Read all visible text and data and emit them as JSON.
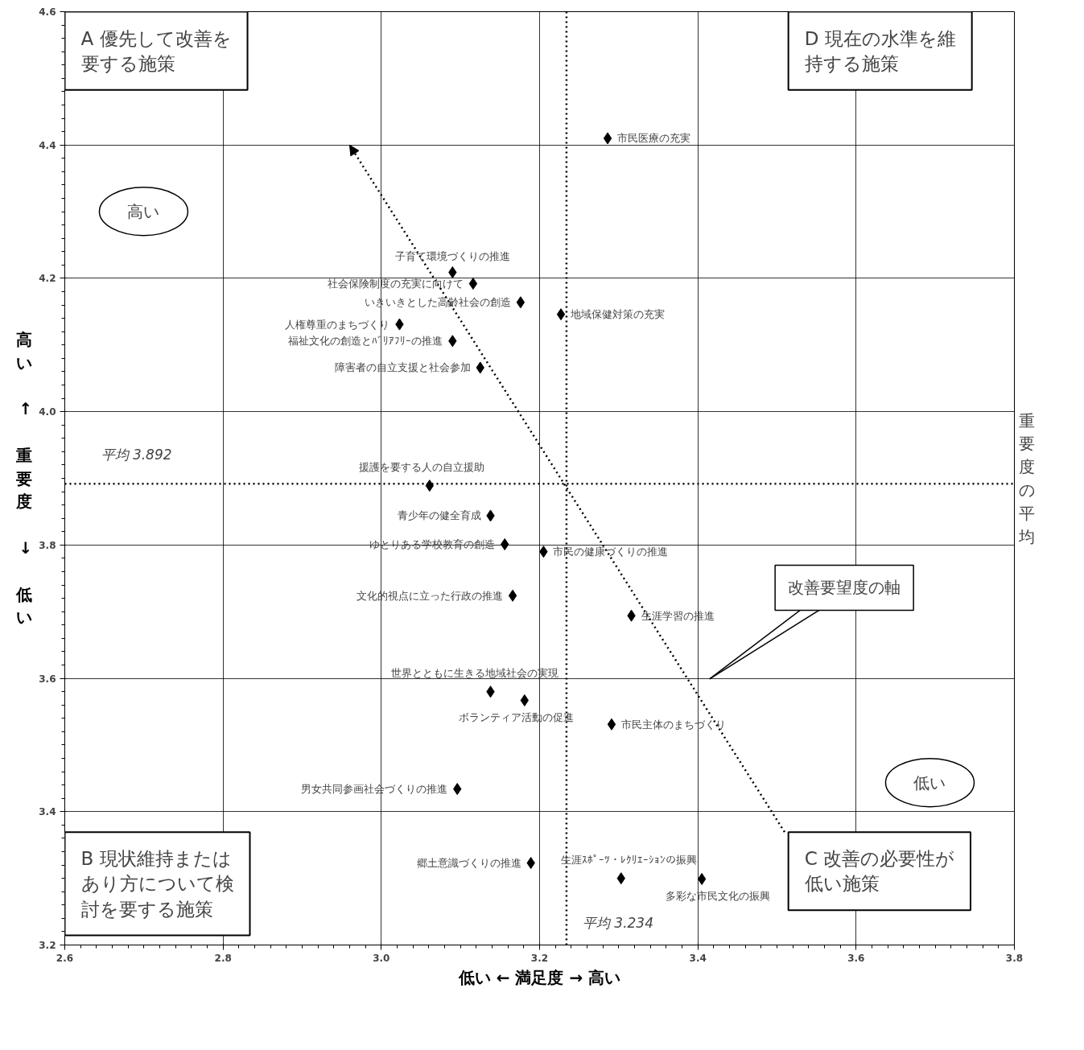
{
  "chart_data": {
    "type": "scatter",
    "xlabel": "低い ← 満足度 → 高い",
    "ylabel": "高い ↑ 重要度 ↓ 低い",
    "y2label": "重要度の平均",
    "x": [
      3.286,
      3.09,
      3.116,
      3.176,
      3.227,
      3.023,
      3.09,
      3.125,
      3.061,
      3.138,
      3.156,
      3.205,
      3.166,
      3.316,
      3.138,
      3.181,
      3.291,
      3.096,
      3.189,
      3.303,
      3.405
    ],
    "series": [
      {
        "color": "#000000",
        "values": [
          4.41,
          4.209,
          4.192,
          4.164,
          4.146,
          4.131,
          4.106,
          4.066,
          3.889,
          3.844,
          3.801,
          3.79,
          3.724,
          3.694,
          3.58,
          3.567,
          3.531,
          3.434,
          3.323,
          3.3,
          3.299
        ]
      }
    ],
    "xlim": [
      2.6,
      3.8
    ],
    "xticks": [
      2.6,
      2.8,
      {
        "value": 3,
        "label": "3.0"
      },
      3.2,
      3.4,
      3.6,
      3.8
    ],
    "ylim": [
      3.2,
      4.6
    ],
    "yticks": [
      3.2,
      3.4,
      3.6,
      3.8,
      {
        "value": 4,
        "label": "4.0"
      },
      4.2,
      4.4,
      4.6
    ],
    "grid": true,
    "marker": "diamond",
    "ref_lines": [
      {
        "axis": "y",
        "value": 3.892,
        "label": "平均  3.892",
        "color": "#000000",
        "line_style": "dotted"
      },
      {
        "axis": "x",
        "value": 3.234,
        "label": "平均  3.234",
        "color": "#000000",
        "line_style": "dotted"
      }
    ],
    "annotations": [
      "A 優先して改善を要する施策",
      "D 現在の水準を維持する施策",
      "B 現状維持またはあり方について検討を要する施策",
      "C 改善の必要性が低い施策",
      "高い",
      "低い",
      "改善要望度の軸",
      {
        "text": "市民医療の充実",
        "x": 3.286,
        "y": 4.41
      },
      {
        "text": "子育て環境づくりの推進",
        "x": 3.09,
        "y": 4.209
      },
      {
        "text": "社会保険制度の充実に向けて",
        "x": 3.116,
        "y": 4.192
      },
      {
        "text": "いきいきとした高齢社会の創造",
        "x": 3.176,
        "y": 4.164
      },
      {
        "text": "地域保健対策の充実",
        "x": 3.227,
        "y": 4.146
      },
      {
        "text": "人権尊重のまちづくり",
        "x": 3.023,
        "y": 4.131
      },
      {
        "text": "福祉文化の創造とﾊﾞﾘｱﾌﾘｰの推進",
        "x": 3.09,
        "y": 4.106
      },
      {
        "text": "障害者の自立支援と社会参加",
        "x": 3.125,
        "y": 4.066
      },
      {
        "text": "援護を要する人の自立援助",
        "x": 3.061,
        "y": 3.889
      },
      {
        "text": "青少年の健全育成",
        "x": 3.138,
        "y": 3.844
      },
      {
        "text": "ゆとりある学校教育の創造",
        "x": 3.156,
        "y": 3.801
      },
      {
        "text": "市民の健康づくりの推進",
        "x": 3.205,
        "y": 3.79
      },
      {
        "text": "文化的視点に立った行政の推進",
        "x": 3.166,
        "y": 3.724
      },
      {
        "text": "生涯学習の推進",
        "x": 3.316,
        "y": 3.694
      },
      {
        "text": "世界とともに生きる地域社会の実現",
        "x": 3.138,
        "y": 3.58
      },
      {
        "text": "ボランティア活動の促進",
        "x": 3.181,
        "y": 3.567
      },
      {
        "text": "市民主体のまちづくり",
        "x": 3.291,
        "y": 3.531
      },
      {
        "text": "男女共同参画社会づくりの推進",
        "x": 3.096,
        "y": 3.434
      },
      {
        "text": "郷土意識づくりの推進",
        "x": 3.189,
        "y": 3.323
      },
      {
        "text": "生涯ｽﾎﾟｰﾂ・ﾚｸﾘｴｰｼｮﾝの振興",
        "x": 3.303,
        "y": 3.3
      },
      {
        "text": "多彩な市民文化の振興",
        "x": 3.405,
        "y": 3.299
      }
    ]
  }
}
